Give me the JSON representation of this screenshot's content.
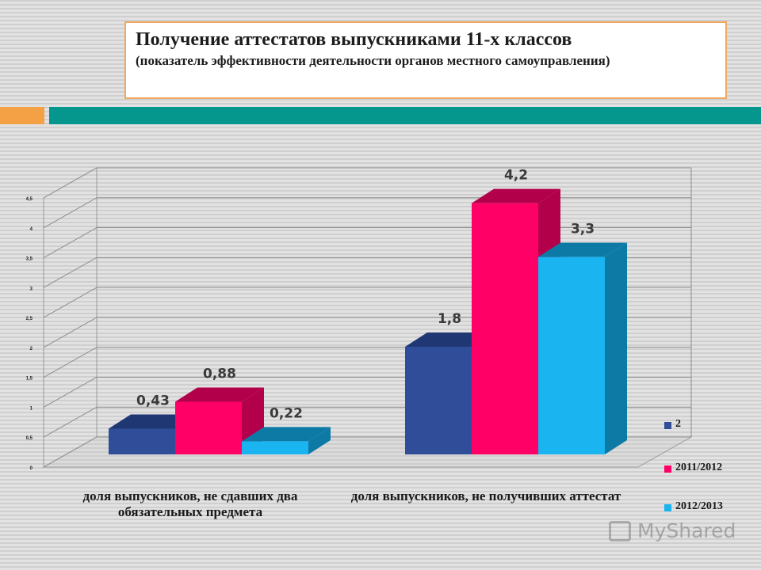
{
  "header": {
    "title": "Получение аттестатов выпускниками 11-х классов",
    "subtitle": "(показатель эффективности деятельности органов местного самоуправления)"
  },
  "colors": {
    "accent_orange": "#f4a044",
    "accent_teal": "#05968e",
    "series": [
      "#304d9a",
      "#ff0066",
      "#1ab4f0"
    ],
    "series_dark": [
      "#1f3773",
      "#b3004a",
      "#0d7aa6"
    ]
  },
  "chart_data": {
    "type": "bar",
    "title": "",
    "xlabel": "",
    "ylabel": "",
    "categories": [
      "доля выпускников, не сдавших два обязательных предмета",
      "доля выпускников, не получивших аттестат"
    ],
    "series": [
      {
        "name": "2",
        "values": [
          0.43,
          1.8
        ]
      },
      {
        "name": "2011/2012",
        "values": [
          0.88,
          4.2
        ]
      },
      {
        "name": "2012/2013",
        "values": [
          0.22,
          3.3
        ]
      }
    ],
    "data_labels": [
      [
        "0,43",
        "1,8"
      ],
      [
        "0,88",
        "4,2"
      ],
      [
        "0,22",
        "3,3"
      ]
    ],
    "yticks": [
      "0",
      "0,5",
      "1",
      "1,5",
      "2",
      "2,5",
      "3",
      "3,5",
      "4",
      "4,5"
    ],
    "ylim": [
      0,
      4.5
    ],
    "grid": true,
    "legend": "right"
  },
  "watermark": {
    "text": "MyShared",
    "icon": "presentation-icon"
  }
}
